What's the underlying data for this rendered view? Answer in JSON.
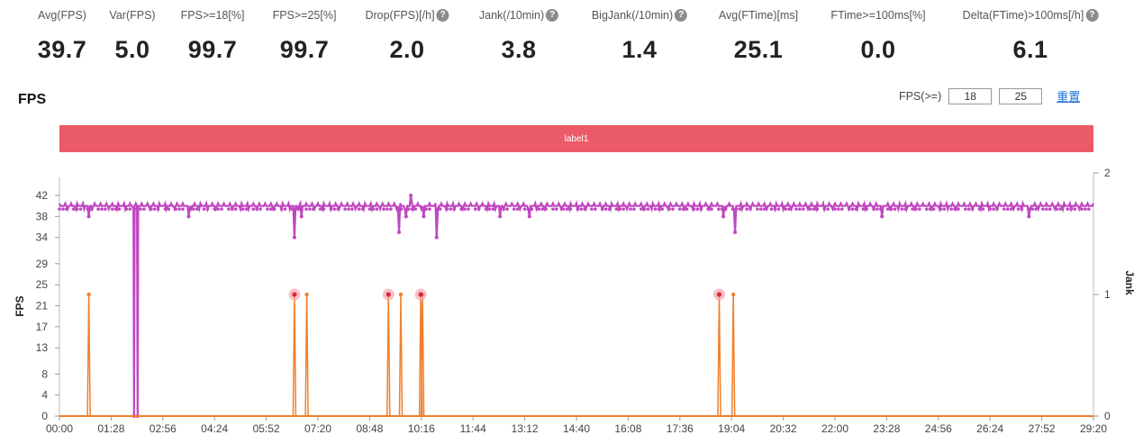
{
  "stats": [
    {
      "label": "Avg(FPS)",
      "value": "39.7",
      "help": false,
      "cx": 69
    },
    {
      "label": "Var(FPS)",
      "value": "5.0",
      "help": false,
      "cx": 147
    },
    {
      "label": "FPS>=18[%]",
      "value": "99.7",
      "help": false,
      "cx": 236
    },
    {
      "label": "FPS>=25[%]",
      "value": "99.7",
      "help": false,
      "cx": 338
    },
    {
      "label": "Drop(FPS)[/h]",
      "value": "2.0",
      "help": true,
      "cx": 452
    },
    {
      "label": "Jank(/10min)",
      "value": "3.8",
      "help": true,
      "cx": 576
    },
    {
      "label": "BigJank(/10min)",
      "value": "1.4",
      "help": true,
      "cx": 710
    },
    {
      "label": "Avg(FTime)[ms]",
      "value": "25.1",
      "help": false,
      "cx": 842
    },
    {
      "label": "FTime>=100ms[%]",
      "value": "0.0",
      "help": false,
      "cx": 975
    },
    {
      "label": "Delta(FTime)>100ms[/h]",
      "value": "6.1",
      "help": true,
      "cx": 1144
    }
  ],
  "section_title": "FPS",
  "thresholds": {
    "label": "FPS(>=)",
    "low": "18",
    "high": "25",
    "reset_label": "重置"
  },
  "label_bar": {
    "text": "label1",
    "color": "#eb5a68"
  },
  "colors": {
    "fps_series": "#c046c0",
    "jank_series": "#f07f2a",
    "bigjank_marker": "#d9283a"
  },
  "chart_data": {
    "type": "line",
    "x_tick_labels": [
      "00:00",
      "01:28",
      "02:56",
      "04:24",
      "05:52",
      "07:20",
      "08:48",
      "10:16",
      "11:44",
      "13:12",
      "14:40",
      "16:08",
      "17:36",
      "19:04",
      "20:32",
      "22:00",
      "23:28",
      "24:56",
      "26:24",
      "27:52",
      "29:20"
    ],
    "xlim_seconds": [
      0,
      1760
    ],
    "y_left": {
      "label": "FPS",
      "ticks": [
        0,
        4,
        8,
        13,
        17,
        21,
        25,
        29,
        34,
        38,
        42
      ],
      "range": [
        0,
        42
      ]
    },
    "y_right": {
      "label": "Jank",
      "ticks": [
        0,
        1,
        2
      ],
      "range": [
        0,
        2
      ]
    },
    "series": [
      {
        "name": "FPS",
        "axis": "left",
        "baseline": 40,
        "dips_seconds_value": [
          [
            50,
            38
          ],
          [
            127,
            0
          ],
          [
            133,
            0
          ],
          [
            220,
            38
          ],
          [
            400,
            34
          ],
          [
            412,
            38
          ],
          [
            578,
            35
          ],
          [
            590,
            38
          ],
          [
            598,
            42
          ],
          [
            620,
            38
          ],
          [
            642,
            34
          ],
          [
            750,
            38
          ],
          [
            800,
            38
          ],
          [
            1130,
            38
          ],
          [
            1150,
            35
          ],
          [
            1400,
            38
          ],
          [
            1650,
            38
          ]
        ]
      },
      {
        "name": "Jank",
        "axis": "right",
        "events_seconds": [
          50,
          400,
          421,
          560,
          581,
          615,
          618,
          1123,
          1147
        ],
        "bigjank_seconds": [
          400,
          560,
          615,
          1123
        ]
      }
    ]
  }
}
